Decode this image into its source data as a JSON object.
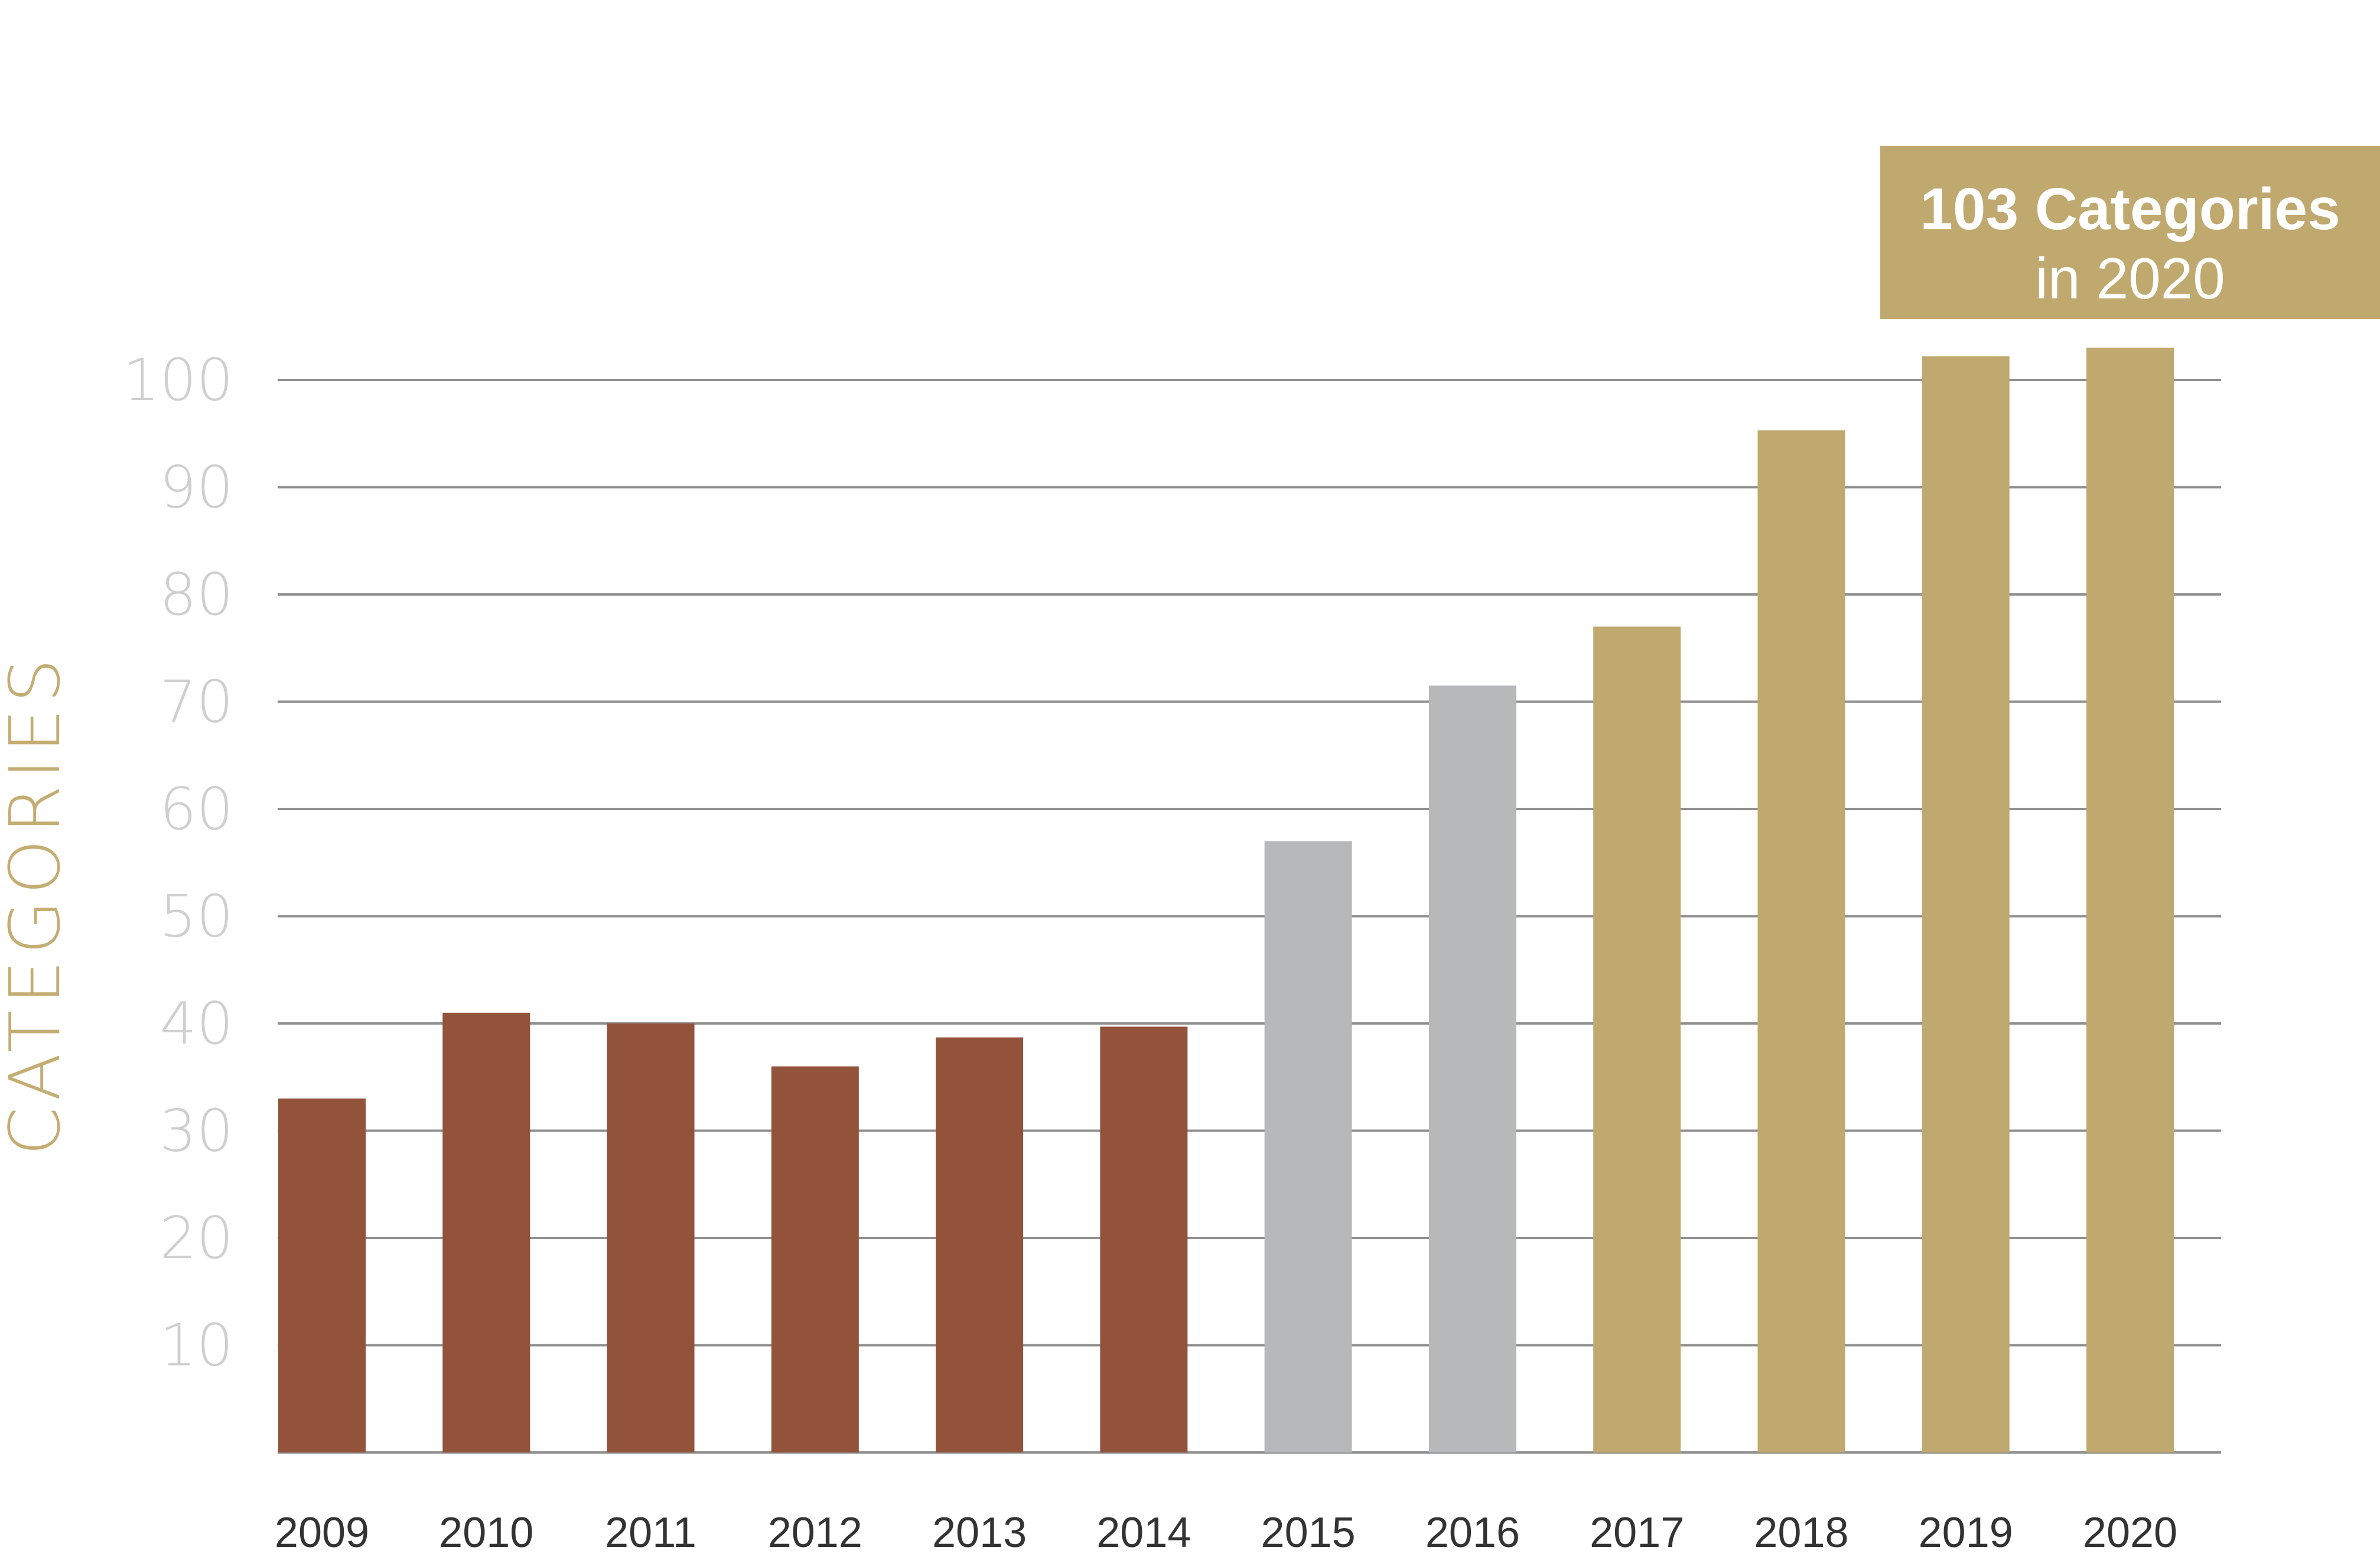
{
  "chart_data": {
    "type": "bar",
    "categories": [
      "2009",
      "2010",
      "2011",
      "2012",
      "2013",
      "2014",
      "2015",
      "2016",
      "2017",
      "2018",
      "2019",
      "2020"
    ],
    "values": [
      33,
      41,
      40,
      36,
      38.7,
      39.7,
      57,
      71.5,
      77,
      95.3,
      102.2,
      103
    ],
    "bar_colors": [
      "#93523a",
      "#93523a",
      "#93523a",
      "#93523a",
      "#93523a",
      "#93523a",
      "#b7b8ba",
      "#b7b8ba",
      "#c0a96f",
      "#c0a96f",
      "#c0a96f",
      "#c0a96f"
    ],
    "ylabel": "CATEGORIES",
    "xlabel": "",
    "ylim": [
      0,
      100
    ],
    "yticks": [
      10,
      20,
      30,
      40,
      50,
      60,
      70,
      80,
      90,
      100
    ],
    "grid": true,
    "annotation": {
      "line1": "103 Categories",
      "line2": "in 2020",
      "color": "#c0a96f"
    }
  },
  "colors": {
    "gridline": "#8f8f8f",
    "ytick_text": "#cfcfcf",
    "xtick_text": "#333333",
    "ylabel_text": "#c4ad73"
  }
}
